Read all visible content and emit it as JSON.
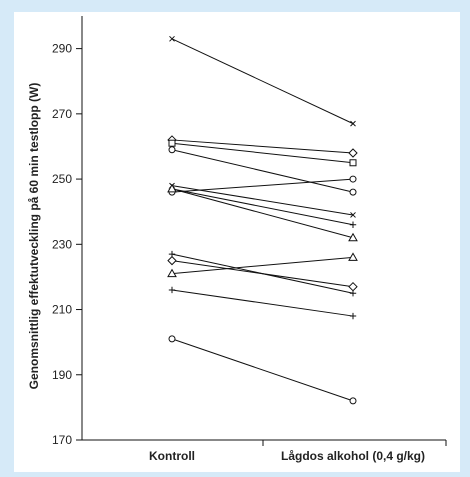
{
  "chart_data": {
    "type": "line",
    "title": "",
    "ylabel": "Genomsnittlig effektutveckling på 60 min testlopp (W)",
    "xlabel": "",
    "categories": [
      "Kontroll",
      "Lågdos alkohol (0,4 g/kg)"
    ],
    "ylim": [
      170,
      300
    ],
    "yticks": [
      170,
      190,
      210,
      230,
      250,
      270,
      290
    ],
    "grid": false,
    "legend": "none",
    "series": [
      {
        "marker": "x",
        "values": [
          293,
          267
        ]
      },
      {
        "marker": "diamond",
        "values": [
          262,
          258
        ]
      },
      {
        "marker": "square",
        "values": [
          261,
          255
        ]
      },
      {
        "marker": "circle",
        "values": [
          259,
          246
        ]
      },
      {
        "marker": "x",
        "values": [
          248,
          239
        ]
      },
      {
        "marker": "plus",
        "values": [
          247,
          236
        ]
      },
      {
        "marker": "circle",
        "values": [
          246,
          250
        ]
      },
      {
        "marker": "triangle",
        "values": [
          247,
          232
        ]
      },
      {
        "marker": "plus",
        "values": [
          227,
          215
        ]
      },
      {
        "marker": "diamond",
        "values": [
          225,
          217
        ]
      },
      {
        "marker": "triangle",
        "values": [
          221,
          226
        ]
      },
      {
        "marker": "plus",
        "values": [
          216,
          208
        ]
      },
      {
        "marker": "circle",
        "values": [
          201,
          182
        ]
      }
    ],
    "colors": {
      "line": "#111111",
      "background": "#d6eaf8",
      "panel": "#ffffff"
    }
  }
}
